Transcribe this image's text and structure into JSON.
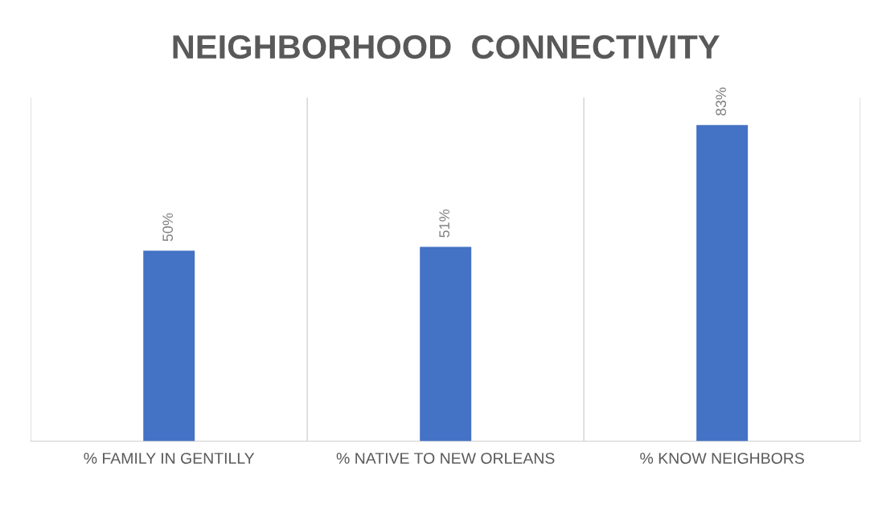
{
  "chart_data": {
    "type": "bar",
    "title": "NEIGHBORHOOD  CONNECTIVITY",
    "categories": [
      "% FAMILY IN GENTILLY",
      "% NATIVE TO NEW ORLEANS",
      "% KNOW NEIGHBORS"
    ],
    "values": [
      50,
      51,
      83
    ],
    "color": "#4472c4",
    "value_labels": [
      "50%",
      "51%",
      "83%"
    ],
    "grid": "x"
  }
}
